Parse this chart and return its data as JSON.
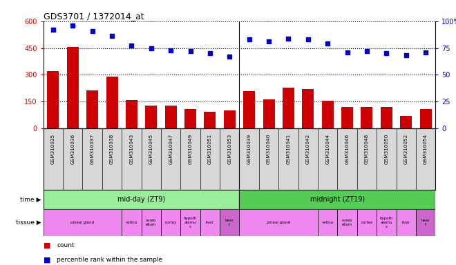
{
  "title": "GDS3701 / 1372014_at",
  "samples": [
    "GSM310035",
    "GSM310036",
    "GSM310037",
    "GSM310038",
    "GSM310043",
    "GSM310045",
    "GSM310047",
    "GSM310049",
    "GSM310051",
    "GSM310053",
    "GSM310039",
    "GSM310040",
    "GSM310041",
    "GSM310042",
    "GSM310044",
    "GSM310046",
    "GSM310048",
    "GSM310050",
    "GSM310052",
    "GSM310054"
  ],
  "counts": [
    320,
    455,
    215,
    290,
    160,
    130,
    130,
    110,
    95,
    100,
    210,
    163,
    230,
    220,
    155,
    120,
    120,
    120,
    70,
    110
  ],
  "percentiles": [
    92,
    96,
    91,
    86,
    77,
    75,
    73,
    72,
    70,
    67,
    83,
    81,
    84,
    83,
    79,
    71,
    72,
    70,
    68,
    71
  ],
  "ylim_left": [
    0,
    600
  ],
  "ylim_right": [
    0,
    100
  ],
  "yticks_left": [
    0,
    150,
    300,
    450,
    600
  ],
  "yticks_right": [
    0,
    25,
    50,
    75,
    100
  ],
  "bar_color": "#cc0000",
  "dot_color": "#0000cc",
  "grid_color": "#000000",
  "xticklabel_bg": "#d8d8d8",
  "time_groups": [
    {
      "label": "mid-day (ZT9)",
      "start": 0,
      "end": 10,
      "color": "#99ee99"
    },
    {
      "label": "midnight (ZT19)",
      "start": 10,
      "end": 20,
      "color": "#55cc55"
    }
  ],
  "tissue_groups": [
    {
      "label": "pineal gland",
      "start": 0,
      "end": 4,
      "color": "#ee88ee"
    },
    {
      "label": "retina",
      "start": 4,
      "end": 5,
      "color": "#ee88ee"
    },
    {
      "label": "cereb\nellum",
      "start": 5,
      "end": 6,
      "color": "#ee88ee"
    },
    {
      "label": "cortex",
      "start": 6,
      "end": 7,
      "color": "#ee88ee"
    },
    {
      "label": "hypoth\nalamu\ns",
      "start": 7,
      "end": 8,
      "color": "#ee88ee"
    },
    {
      "label": "liver",
      "start": 8,
      "end": 9,
      "color": "#ee88ee"
    },
    {
      "label": "hear\nt",
      "start": 9,
      "end": 10,
      "color": "#cc66cc"
    },
    {
      "label": "pineal gland",
      "start": 10,
      "end": 14,
      "color": "#ee88ee"
    },
    {
      "label": "retina",
      "start": 14,
      "end": 15,
      "color": "#ee88ee"
    },
    {
      "label": "cereb\nellum",
      "start": 15,
      "end": 16,
      "color": "#ee88ee"
    },
    {
      "label": "cortex",
      "start": 16,
      "end": 17,
      "color": "#ee88ee"
    },
    {
      "label": "hypoth\nalamu\ns",
      "start": 17,
      "end": 18,
      "color": "#ee88ee"
    },
    {
      "label": "liver",
      "start": 18,
      "end": 19,
      "color": "#ee88ee"
    },
    {
      "label": "hear\nt",
      "start": 19,
      "end": 20,
      "color": "#cc66cc"
    }
  ],
  "legend_items": [
    {
      "label": "count",
      "color": "#cc0000"
    },
    {
      "label": "percentile rank within the sample",
      "color": "#0000cc"
    }
  ],
  "bg_color": "#ffffff",
  "tick_label_color_left": "#cc0000",
  "tick_label_color_right": "#0000cc"
}
